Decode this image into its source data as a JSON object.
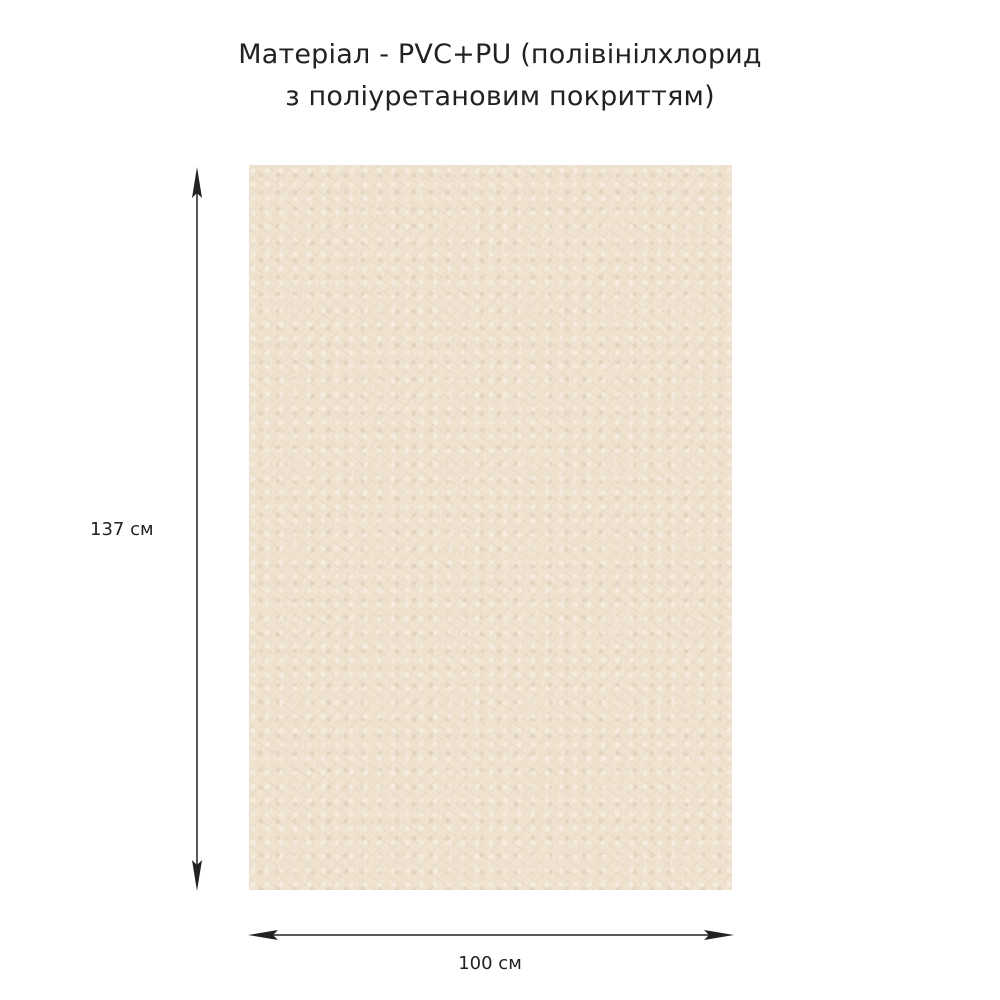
{
  "title": {
    "line1": "Матеріал - PVC+PU (полівінілхлорид",
    "line2": "з поліуретановим покриттям)"
  },
  "dimensions": {
    "height_label": "137 см",
    "width_label": "100 см"
  },
  "colors": {
    "material": "#efe2cf",
    "arrow": "#222222"
  }
}
